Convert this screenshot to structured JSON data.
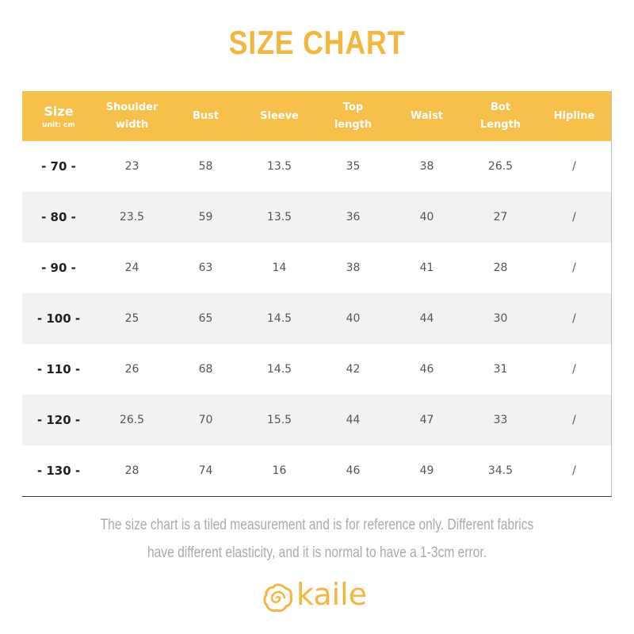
{
  "title": "SIZE CHART",
  "table": {
    "size_header": "Size",
    "unit": "unit: cm",
    "headers": [
      "Shoulder width",
      "Bust",
      "Sleeve",
      "Top length",
      "Waist",
      "Bot Length",
      "Hipline"
    ],
    "rows": [
      [
        "- 70 -",
        23,
        58,
        13.5,
        35,
        38,
        26.5,
        "/"
      ],
      [
        "- 80 -",
        23.5,
        59,
        13.5,
        36,
        40,
        27,
        "/"
      ],
      [
        "- 90 -",
        24,
        63,
        14,
        38,
        41,
        28,
        "/"
      ],
      [
        "- 100 -",
        25,
        65,
        14.5,
        40,
        44,
        30,
        "/"
      ],
      [
        "- 110 -",
        26,
        68,
        14.5,
        42,
        46,
        31,
        "/"
      ],
      [
        "- 120 -",
        26.5,
        70,
        15.5,
        44,
        47,
        33,
        "/"
      ],
      [
        "- 130 -",
        28,
        74,
        16,
        46,
        49,
        34.5,
        "/"
      ]
    ]
  },
  "note": "The size chart is a tiled measurement and is for reference only. Different fabrics have different elasticity, and it is normal to have a 1-3cm error.",
  "brand": "kaile"
}
